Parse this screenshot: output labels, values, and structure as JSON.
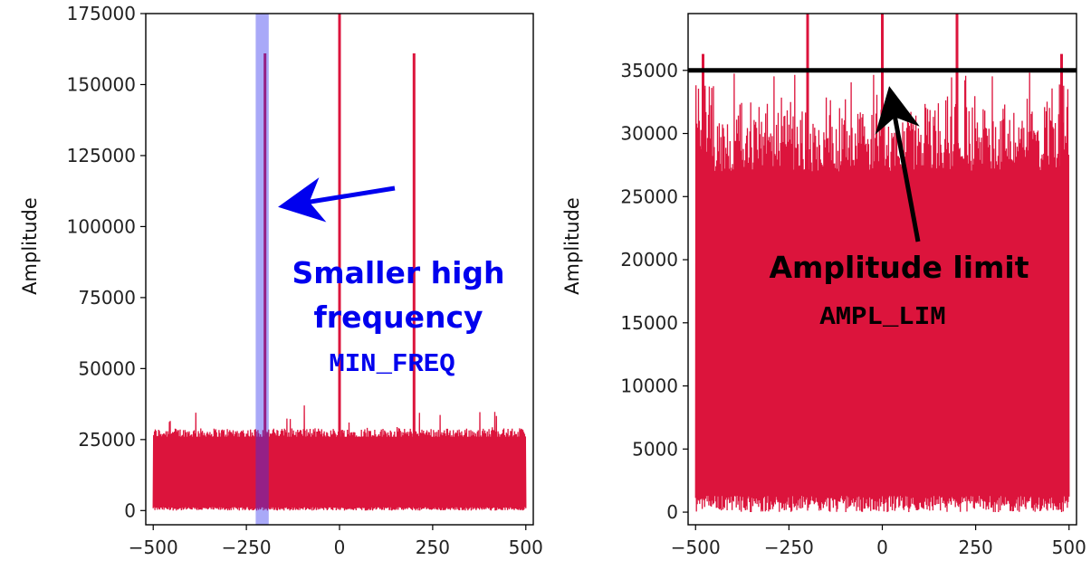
{
  "chart_data": [
    {
      "type": "line",
      "title": "",
      "xlabel": "",
      "ylabel": "Amplitude",
      "xlim": [
        -520,
        520
      ],
      "ylim": [
        -5000,
        175000
      ],
      "xticks": [
        -500,
        -250,
        0,
        250,
        500
      ],
      "yticks": [
        0,
        25000,
        50000,
        75000,
        100000,
        125000,
        150000,
        175000
      ],
      "xtick_labels": [
        "−500",
        "−250",
        "0",
        "250",
        "500"
      ],
      "ytick_labels": [
        "0",
        "25000",
        "50000",
        "75000",
        "100000",
        "125000",
        "150000",
        "175000"
      ],
      "grid": false,
      "series": [
        {
          "color": "#dc143c",
          "noise": {
            "x_range": [
              -500,
              500
            ],
            "min": 0,
            "typical_max": 29000,
            "peak_max": 38000
          },
          "spikes": [
            {
              "x": -200,
              "y": 161000
            },
            {
              "x": 0,
              "y": 175000
            },
            {
              "x": 200,
              "y": 161000
            }
          ]
        }
      ],
      "highlight_band": {
        "x": [
          -225,
          -190
        ],
        "color": "#3333ee"
      },
      "annotations": [
        {
          "text": "Smaller high",
          "color": "#0000ee",
          "arrow_to": {
            "x": -200,
            "y": 109000
          }
        },
        {
          "text": "frequency",
          "color": "#0000ee"
        },
        {
          "text": "MIN_FREQ",
          "color": "#0000ee",
          "style": "code"
        }
      ]
    },
    {
      "type": "line",
      "title": "",
      "xlabel": "",
      "ylabel": "Amplitude",
      "xlim": [
        -520,
        520
      ],
      "ylim": [
        -1000,
        39500
      ],
      "xticks": [
        -500,
        -250,
        0,
        250,
        500
      ],
      "yticks": [
        0,
        5000,
        10000,
        15000,
        20000,
        25000,
        30000,
        35000
      ],
      "xtick_labels": [
        "−500",
        "−250",
        "0",
        "250",
        "500"
      ],
      "ytick_labels": [
        "0",
        "5000",
        "10000",
        "15000",
        "20000",
        "25000",
        "30000",
        "35000"
      ],
      "grid": false,
      "series": [
        {
          "color": "#dc143c",
          "band": {
            "x_range": [
              -500,
              500
            ],
            "low_max": 1300,
            "high_min": 27000,
            "high_max": 33500
          },
          "spikes": [
            {
              "x": -200,
              "y": 39500
            },
            {
              "x": 0,
              "y": 39500
            },
            {
              "x": 200,
              "y": 39500
            },
            {
              "x": -480,
              "y": 36300
            },
            {
              "x": 480,
              "y": 36300
            }
          ]
        }
      ],
      "hline": {
        "y": 35000,
        "color": "#000000"
      },
      "annotations": [
        {
          "text": "Amplitude limit",
          "color": "#000000",
          "arrow_to": {
            "x": 0,
            "y": 34500
          }
        },
        {
          "text": "AMPL_LIM",
          "color": "#000000",
          "style": "code"
        }
      ]
    }
  ]
}
